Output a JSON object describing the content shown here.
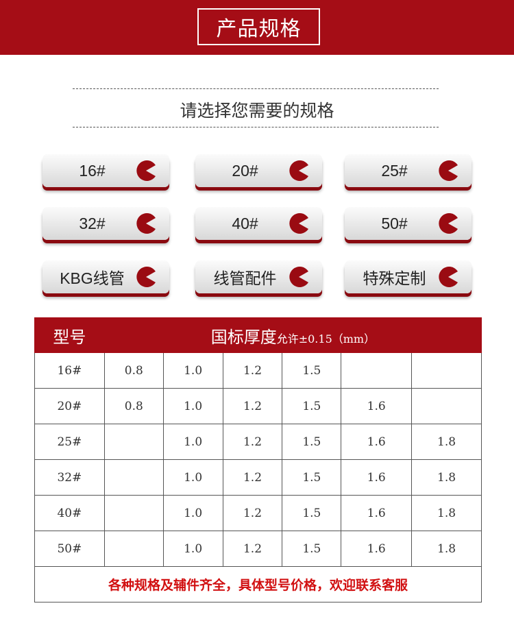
{
  "header": {
    "title": "产品规格"
  },
  "subtitle": "请选择您需要的规格",
  "buttons": [
    "16#",
    "20#",
    "25#",
    "32#",
    "40#",
    "50#",
    "KBG线管",
    "线管配件",
    "特殊定制"
  ],
  "colors": {
    "brand": "#a50d16",
    "footer_text": "#d10f10"
  },
  "table": {
    "header_model": "型号",
    "header_thickness": "国标厚度",
    "header_tolerance": "允许±0.15（mm）",
    "rows": [
      [
        "16#",
        "0.8",
        "1.0",
        "1.2",
        "1.5",
        "",
        ""
      ],
      [
        "20#",
        "0.8",
        "1.0",
        "1.2",
        "1.5",
        "1.6",
        ""
      ],
      [
        "25#",
        "",
        "1.0",
        "1.2",
        "1.5",
        "1.6",
        "1.8"
      ],
      [
        "32#",
        "",
        "1.0",
        "1.2",
        "1.5",
        "1.6",
        "1.8"
      ],
      [
        "40#",
        "",
        "1.0",
        "1.2",
        "1.5",
        "1.6",
        "1.8"
      ],
      [
        "50#",
        "",
        "1.0",
        "1.2",
        "1.5",
        "1.6",
        "1.8"
      ]
    ],
    "footer": "各种规格及辅件齐全，具体型号价格，欢迎联系客服"
  }
}
